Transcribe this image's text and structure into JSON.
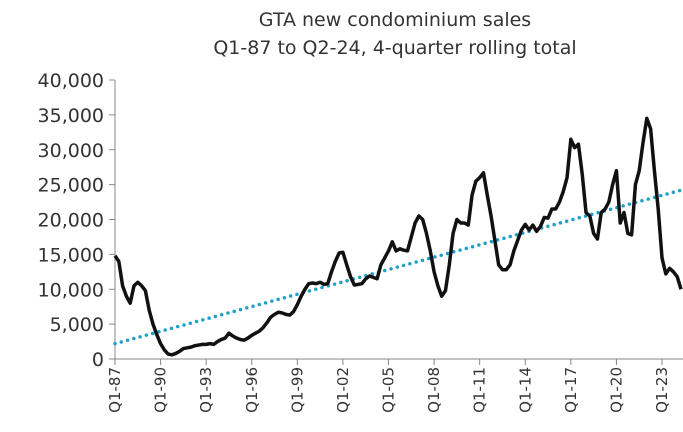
{
  "chart_data": {
    "type": "line",
    "title": [
      "GTA new condominium sales",
      "Q1-87 to Q2-24, 4-quarter rolling total"
    ],
    "categories": [
      "Q1-87",
      null,
      null,
      null,
      null,
      null,
      null,
      null,
      null,
      null,
      null,
      null,
      "Q1-90",
      null,
      null,
      null,
      null,
      null,
      null,
      null,
      null,
      null,
      null,
      null,
      "Q1-93",
      null,
      null,
      null,
      null,
      null,
      null,
      null,
      null,
      null,
      null,
      null,
      "Q1-96",
      null,
      null,
      null,
      null,
      null,
      null,
      null,
      null,
      null,
      null,
      null,
      "Q1-99",
      null,
      null,
      null,
      null,
      null,
      null,
      null,
      null,
      null,
      null,
      null,
      "Q1-02",
      null,
      null,
      null,
      null,
      null,
      null,
      null,
      null,
      null,
      null,
      null,
      "Q1-05",
      null,
      null,
      null,
      null,
      null,
      null,
      null,
      null,
      null,
      null,
      null,
      "Q1-08",
      null,
      null,
      null,
      null,
      null,
      null,
      null,
      null,
      null,
      null,
      null,
      "Q1-11",
      null,
      null,
      null,
      null,
      null,
      null,
      null,
      null,
      null,
      null,
      null,
      "Q1-14",
      null,
      null,
      null,
      null,
      null,
      null,
      null,
      null,
      null,
      null,
      null,
      "Q1-17",
      null,
      null,
      null,
      null,
      null,
      null,
      null,
      null,
      null,
      null,
      null,
      "Q1-20",
      null,
      null,
      null,
      null,
      null,
      null,
      null,
      null,
      null,
      null,
      null,
      "Q1-23",
      null,
      null,
      null,
      null,
      null
    ],
    "series": [
      {
        "color": "#111111",
        "values": [
          14800,
          14000,
          10500,
          9000,
          8000,
          10500,
          11000,
          10500,
          9800,
          7000,
          5000,
          3500,
          2200,
          1300,
          700,
          600,
          800,
          1100,
          1500,
          1600,
          1700,
          1900,
          2000,
          2100,
          2100,
          2200,
          2100,
          2500,
          2800,
          3000,
          3700,
          3300,
          3000,
          2800,
          2700,
          3000,
          3400,
          3700,
          4000,
          4500,
          5200,
          6000,
          6400,
          6700,
          6600,
          6400,
          6300,
          6800,
          7800,
          9000,
          10000,
          10800,
          10900,
          10800,
          11000,
          10700,
          10800,
          12500,
          14000,
          15200,
          15300,
          13500,
          11800,
          10600,
          10700,
          10800,
          11500,
          11900,
          11700,
          11500,
          13500,
          14500,
          15500,
          16800,
          15500,
          15800,
          15600,
          15500,
          17500,
          19500,
          20500,
          20000,
          18000,
          15500,
          12500,
          10500,
          9000,
          9800,
          13500,
          18000,
          20000,
          19500,
          19500,
          19200,
          23500,
          25500,
          26000,
          26700,
          23500,
          20500,
          17000,
          13500,
          12800,
          12800,
          13500,
          15500,
          17000,
          18500,
          19300,
          18500,
          19200,
          18300,
          19000,
          20300,
          20200,
          21500,
          21500,
          22500,
          24000,
          26000,
          31500,
          30300,
          30800,
          26500,
          21000,
          20500,
          18000,
          17200,
          21000,
          21500,
          22500,
          25000,
          27000,
          19500,
          21000,
          18000,
          17800,
          25000,
          27000,
          31000,
          34500,
          33000,
          27000,
          21500,
          14500,
          12200,
          13000,
          12500,
          11800,
          10000
        ]
      }
    ],
    "trendline": {
      "color": "#1f9fc9",
      "values": [
        2200,
        24200
      ]
    },
    "ylim": [
      0,
      40000
    ],
    "yticks": [
      0,
      {
        "value": 5000,
        "label": "5,000"
      },
      {
        "value": 10000,
        "label": "10,000"
      },
      {
        "value": 15000,
        "label": "15,000"
      },
      {
        "value": 20000,
        "label": "20,000"
      },
      {
        "value": 25000,
        "label": "25,000"
      },
      {
        "value": 30000,
        "label": "30,000"
      },
      {
        "value": 35000,
        "label": "35,000"
      },
      {
        "value": 40000,
        "label": "40,000"
      }
    ]
  }
}
